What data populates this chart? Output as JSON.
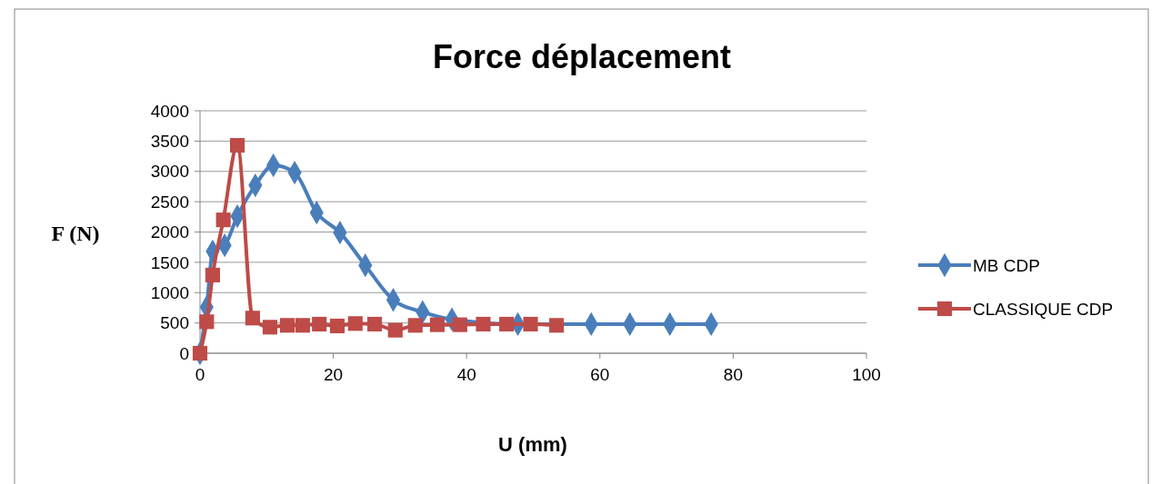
{
  "chart_data": {
    "type": "line",
    "title": "Force déplacement",
    "xlabel": "U (mm)",
    "ylabel": "F (N)",
    "xlim": [
      0,
      100
    ],
    "xticks": [
      0,
      20,
      40,
      60,
      80,
      100
    ],
    "ylim": [
      0,
      4000
    ],
    "yticks": [
      0,
      500,
      1000,
      1500,
      2000,
      2500,
      3000,
      3500,
      4000
    ],
    "grid": "y",
    "legend": "right",
    "series": [
      {
        "name": "MB CDP",
        "color": "#4a7ebb",
        "marker": "diamond",
        "x": [
          0,
          1,
          1.9,
          3.7,
          5.6,
          8.3,
          11,
          14.2,
          17.5,
          21,
          24.8,
          29,
          33.4,
          37.8,
          42.3,
          47.7,
          53.2,
          58.7,
          64.5,
          70.5,
          76.7
        ],
        "values": [
          0,
          760,
          1680,
          1780,
          2260,
          2770,
          3100,
          2980,
          2320,
          1990,
          1450,
          880,
          680,
          560,
          null,
          480,
          null,
          480,
          480,
          480,
          480
        ]
      },
      {
        "name": "CLASSIQUE CDP",
        "color": "#be4b48",
        "marker": "square",
        "x": [
          0,
          1,
          1.9,
          3.5,
          5.6,
          7.9,
          10.5,
          13.1,
          15.4,
          17.9,
          20.6,
          23.3,
          26.2,
          29.3,
          32.3,
          35.6,
          39,
          42.5,
          46,
          49.6,
          53.5
        ],
        "values": [
          0,
          520,
          1290,
          2200,
          3430,
          580,
          430,
          460,
          460,
          480,
          450,
          490,
          480,
          380,
          460,
          470,
          470,
          480,
          480,
          480,
          460
        ]
      }
    ]
  }
}
